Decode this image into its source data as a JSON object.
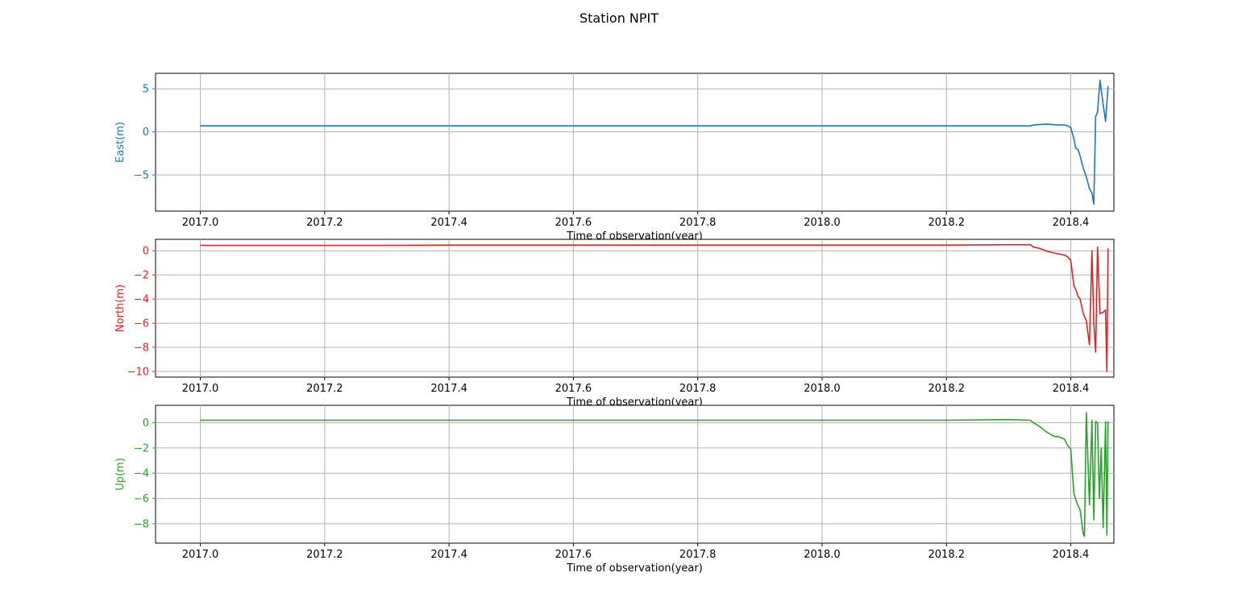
{
  "figure": {
    "title": "Station NPIT"
  },
  "chart_data": [
    {
      "type": "line",
      "title": "",
      "xlabel": "Time of observation(year)",
      "ylabel": "East(m)",
      "color": "#1f77b4",
      "xlim": [
        1996.93,
        2018.47
      ],
      "ylim": [
        -9.2,
        6.8
      ],
      "xticks": [
        2017.0,
        2017.2,
        2017.4,
        2017.6,
        2017.8,
        2018.0,
        2018.2,
        2018.4
      ],
      "xtick_labels": [
        "2017.0",
        "2017.2",
        "2017.4",
        "2017.6",
        "2017.8",
        "2018.0",
        "2018.2",
        "2018.4"
      ],
      "yticks": [
        5,
        0,
        -5
      ],
      "ytick_labels": [
        "5",
        "0",
        "−5"
      ],
      "grid": true,
      "series": [
        {
          "x": [
            2017.0,
            2017.1,
            2017.2,
            2017.3,
            2017.4,
            2017.5,
            2017.6,
            2017.7,
            2017.8,
            2017.9,
            2018.0,
            2018.1,
            2018.2,
            2018.3,
            2018.335,
            2018.34,
            2018.35,
            2018.36,
            2018.37,
            2018.38,
            2018.39,
            2018.395,
            2018.4,
            2018.405,
            2018.408,
            2018.412,
            2018.415,
            2018.42,
            2018.425,
            2018.43,
            2018.434,
            2018.437,
            2018.44,
            2018.443,
            2018.447,
            2018.452,
            2018.456,
            2018.46
          ],
          "y": [
            0.7,
            0.7,
            0.7,
            0.7,
            0.7,
            0.7,
            0.7,
            0.7,
            0.7,
            0.7,
            0.7,
            0.7,
            0.7,
            0.7,
            0.7,
            0.8,
            0.85,
            0.9,
            0.85,
            0.8,
            0.8,
            0.7,
            0.5,
            -0.8,
            -1.9,
            -2.1,
            -2.8,
            -4.2,
            -5.2,
            -6.6,
            -7.1,
            -8.4,
            1.8,
            2.3,
            6.0,
            3.2,
            1.2,
            5.3
          ]
        }
      ]
    },
    {
      "type": "line",
      "title": "",
      "xlabel": "Time of observation(year)",
      "ylabel": "North(m)",
      "color": "#d62728",
      "xlim": [
        1996.93,
        2018.47
      ],
      "ylim": [
        -10.47,
        0.95
      ],
      "xticks": [
        2017.0,
        2017.2,
        2017.4,
        2017.6,
        2017.8,
        2018.0,
        2018.2,
        2018.4
      ],
      "xtick_labels": [
        "2017.0",
        "2017.2",
        "2017.4",
        "2017.6",
        "2017.8",
        "2018.0",
        "2018.2",
        "2018.4"
      ],
      "yticks": [
        0,
        -2,
        -4,
        -6,
        -8,
        -10
      ],
      "ytick_labels": [
        "0",
        "−2",
        "−4",
        "−6",
        "−8",
        "−10"
      ],
      "grid": true,
      "series": [
        {
          "x": [
            2017.0,
            2017.1,
            2017.2,
            2017.3,
            2017.4,
            2017.5,
            2017.6,
            2017.7,
            2017.8,
            2017.9,
            2018.0,
            2018.1,
            2018.2,
            2018.3,
            2018.335,
            2018.34,
            2018.35,
            2018.36,
            2018.37,
            2018.38,
            2018.39,
            2018.395,
            2018.4,
            2018.405,
            2018.408,
            2018.412,
            2018.415,
            2018.42,
            2018.425,
            2018.43,
            2018.434,
            2018.437,
            2018.44,
            2018.443,
            2018.447,
            2018.452,
            2018.456,
            2018.458,
            2018.46
          ],
          "y": [
            0.45,
            0.45,
            0.45,
            0.45,
            0.47,
            0.47,
            0.47,
            0.47,
            0.47,
            0.47,
            0.47,
            0.47,
            0.47,
            0.5,
            0.5,
            0.3,
            0.2,
            0.0,
            -0.15,
            -0.25,
            -0.35,
            -0.5,
            -0.8,
            -2.9,
            -3.2,
            -3.8,
            -4.0,
            -5.2,
            -5.8,
            -7.8,
            0.0,
            -6.0,
            -8.4,
            0.3,
            -5.2,
            -5.1,
            -4.9,
            -10.0,
            0.2
          ]
        }
      ]
    },
    {
      "type": "line",
      "title": "",
      "xlabel": "Time of observation(year)",
      "ylabel": "Up(m)",
      "color": "#2ca02c",
      "xlim": [
        1996.93,
        2018.47
      ],
      "ylim": [
        -9.54,
        1.38
      ],
      "xticks": [
        2017.0,
        2017.2,
        2017.4,
        2017.6,
        2017.8,
        2018.0,
        2018.2,
        2018.4
      ],
      "xtick_labels": [
        "2017.0",
        "2017.2",
        "2017.4",
        "2017.6",
        "2017.8",
        "2018.0",
        "2018.2",
        "2018.4"
      ],
      "yticks": [
        0,
        -2,
        -4,
        -6,
        -8
      ],
      "ytick_labels": [
        "0",
        "−2",
        "−4",
        "−6",
        "−8"
      ],
      "grid": true,
      "series": [
        {
          "x": [
            2017.0,
            2017.1,
            2017.2,
            2017.3,
            2017.4,
            2017.5,
            2017.6,
            2017.7,
            2017.8,
            2017.9,
            2018.0,
            2018.1,
            2018.2,
            2018.3,
            2018.335,
            2018.34,
            2018.35,
            2018.36,
            2018.37,
            2018.375,
            2018.38,
            2018.39,
            2018.395,
            2018.4,
            2018.405,
            2018.408,
            2018.412,
            2018.415,
            2018.42,
            2018.422,
            2018.425,
            2018.43,
            2018.434,
            2018.437,
            2018.44,
            2018.443,
            2018.446,
            2018.449,
            2018.452,
            2018.456,
            2018.458,
            2018.46
          ],
          "y": [
            0.2,
            0.2,
            0.2,
            0.2,
            0.2,
            0.2,
            0.2,
            0.2,
            0.2,
            0.2,
            0.2,
            0.2,
            0.2,
            0.25,
            0.2,
            0.0,
            -0.3,
            -0.7,
            -1.0,
            -1.1,
            -1.1,
            -1.3,
            -1.8,
            -2.1,
            -5.6,
            -6.1,
            -6.6,
            -6.9,
            -8.8,
            -9.0,
            0.8,
            -6.5,
            0.2,
            -7.7,
            0.1,
            0.0,
            -6.0,
            -2.0,
            -8.3,
            0.1,
            -8.9,
            0.1
          ]
        }
      ]
    }
  ]
}
